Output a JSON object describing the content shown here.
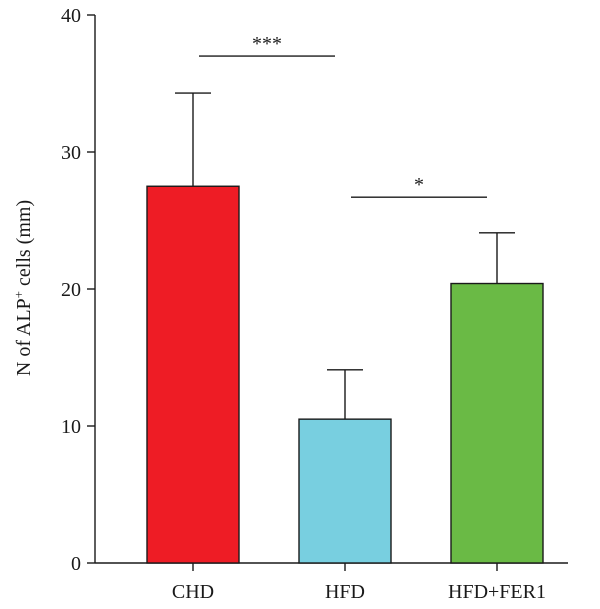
{
  "chart_data": {
    "type": "bar",
    "categories": [
      "CHD",
      "HFD",
      "HFD+FER1"
    ],
    "values": [
      27.5,
      10.5,
      20.4
    ],
    "errors": [
      6.8,
      3.6,
      3.7
    ],
    "colors": [
      "#ee1c25",
      "#78cfe0",
      "#6aba45"
    ],
    "ylabel_main": "N of ALP",
    "ylabel_sup": "+",
    "ylabel_rest": " cells (mm)",
    "ylim": [
      0,
      40
    ],
    "yticks": [
      0,
      10,
      20,
      30,
      40
    ],
    "grid": false,
    "significance": [
      {
        "from": "CHD",
        "to": "HFD",
        "level": 37,
        "label": "***"
      },
      {
        "from": "HFD",
        "to": "HFD+FER1",
        "level": 26.7,
        "label": "*"
      }
    ]
  }
}
